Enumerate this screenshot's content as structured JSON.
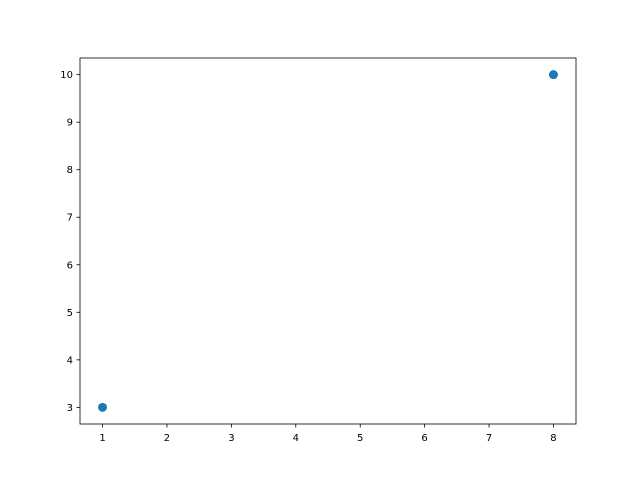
{
  "chart_data": {
    "type": "scatter",
    "title": "",
    "xlabel": "",
    "ylabel": "",
    "x": [
      1,
      8
    ],
    "y": [
      3,
      10
    ],
    "xlim": [
      0.65,
      8.35
    ],
    "ylim": [
      2.65,
      10.35
    ],
    "xticks": [
      1,
      2,
      3,
      4,
      5,
      6,
      7,
      8
    ],
    "yticks": [
      3,
      4,
      5,
      6,
      7,
      8,
      9,
      10
    ],
    "xtick_labels": [
      "1",
      "2",
      "3",
      "4",
      "5",
      "6",
      "7",
      "8"
    ],
    "ytick_labels": [
      "3",
      "4",
      "5",
      "6",
      "7",
      "8",
      "9",
      "10"
    ],
    "grid": false,
    "legend": "none",
    "marker_color": "#1f77b4"
  }
}
